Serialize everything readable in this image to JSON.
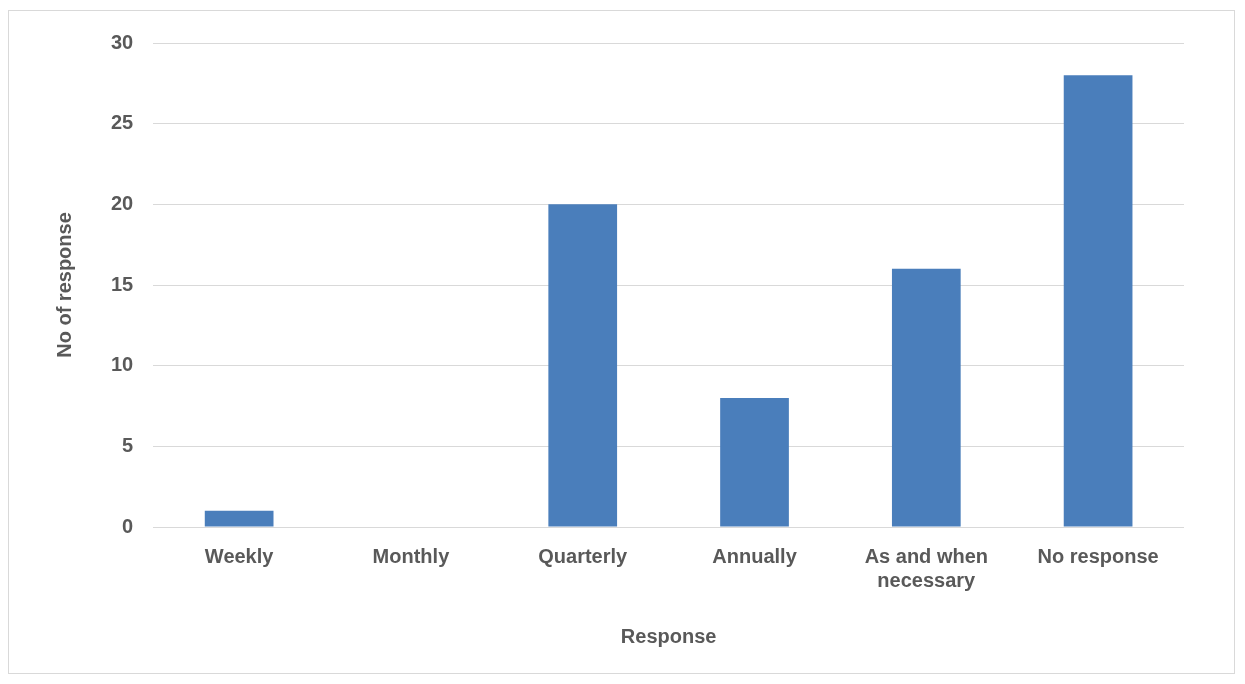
{
  "chart_data": {
    "type": "bar",
    "xlabel": "Response",
    "ylabel": "No of response",
    "categories": [
      "Weekly",
      "Monthly",
      "Quarterly",
      "Annually",
      "As and when necessary",
      "No response"
    ],
    "values": [
      1,
      0,
      20,
      8,
      16,
      28
    ],
    "color": "#4a7ebb",
    "ylim": [
      0,
      30
    ],
    "yticks": [
      0,
      5,
      10,
      15,
      20,
      25,
      30
    ],
    "grid": "y",
    "legend": false
  }
}
